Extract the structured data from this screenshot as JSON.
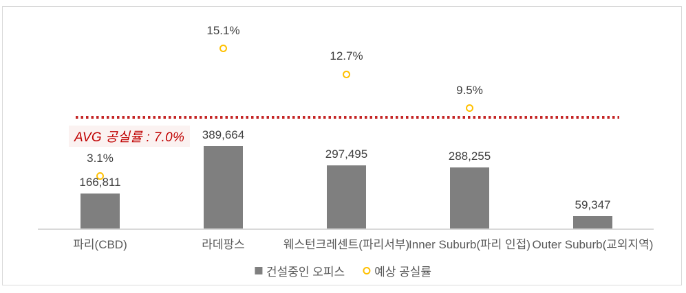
{
  "chart_data": {
    "type": "bar",
    "subtype": "combo-bar-scatter",
    "categories": [
      "파리(CBD)",
      "라데팡스",
      "웨스턴크레센트(파리서부)",
      "Inner Suburb(파리 인접)",
      "Outer Suburb(교외지역)"
    ],
    "series": [
      {
        "name": "건설중인 오피스",
        "type": "bar",
        "values": [
          166811,
          389664,
          297495,
          288255,
          59347
        ],
        "labels": [
          "166,811",
          "389,664",
          "297,495",
          "288,255",
          "59,347"
        ],
        "color": "#7F7F7F"
      },
      {
        "name": "예상 공실률",
        "type": "scatter",
        "unit": "%",
        "values": [
          3.1,
          15.1,
          12.7,
          9.5,
          null
        ],
        "labels": [
          "3.1%",
          "15.1%",
          "12.7%",
          "9.5%",
          null
        ],
        "color": "#FFC000"
      }
    ],
    "annotation": {
      "label": "AVG 공실률 : 7.0%",
      "value": 7.0,
      "line_color": "#C42525",
      "text_color": "#C00000"
    },
    "legend_position": "bottom",
    "grid": false,
    "axis_color": "#D9D9D9",
    "label_color": "#404040",
    "category_color": "#595959"
  }
}
